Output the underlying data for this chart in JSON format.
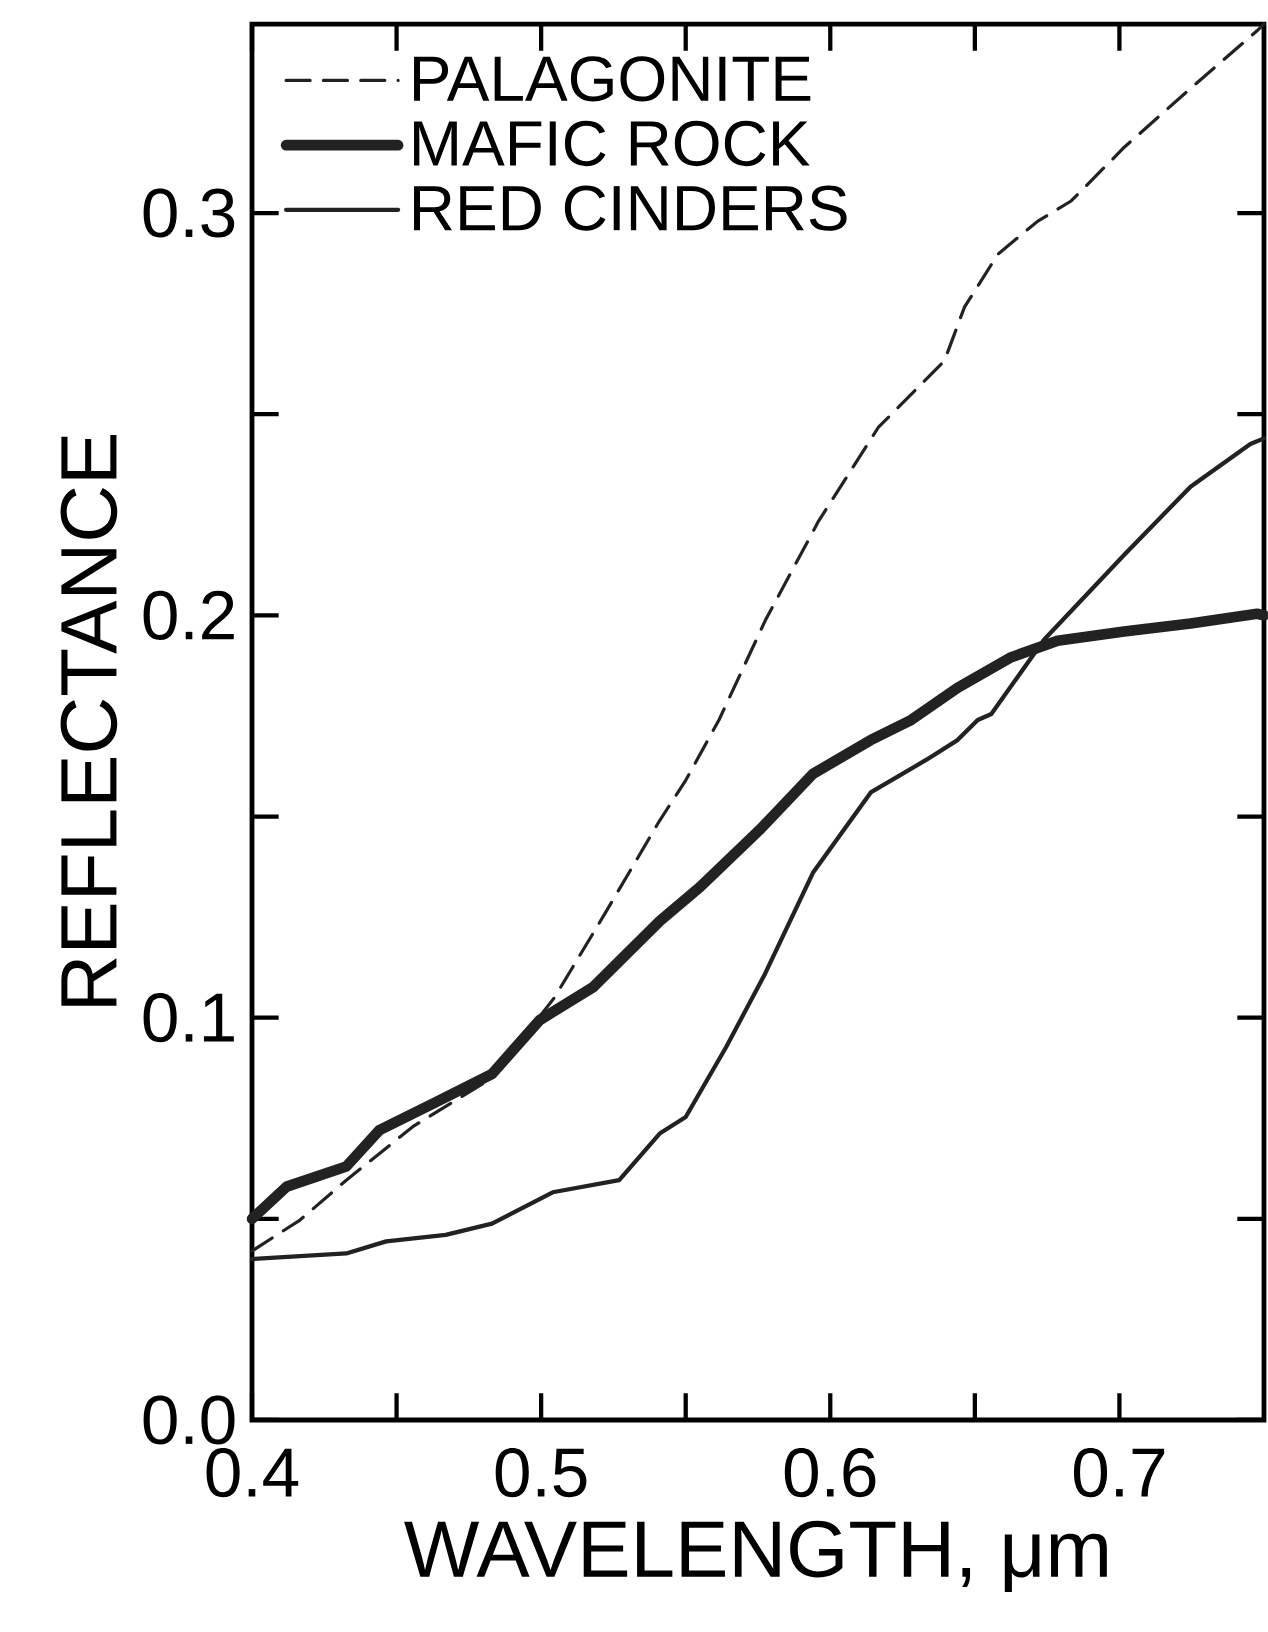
{
  "chart_data": {
    "type": "line",
    "xlabel": "WAVELENGTH, μm",
    "ylabel": "REFLECTANCE",
    "xlim": [
      0.4,
      0.75
    ],
    "ylim": [
      0,
      0.347
    ],
    "xticks": [
      0.4,
      {
        "value": 0.45,
        "label": null
      },
      0.5,
      {
        "value": 0.55,
        "label": null
      },
      0.6,
      {
        "value": 0.65,
        "label": null
      },
      0.7
    ],
    "yticks": [
      {
        "value": 0,
        "label": "0.0"
      },
      {
        "value": 0.05,
        "label": null
      },
      0.1,
      {
        "value": 0.15,
        "label": null
      },
      0.2,
      {
        "value": 0.25,
        "label": null
      },
      0.3
    ],
    "legend": "top left",
    "grid": false,
    "series": [
      {
        "name": "PALAGONITE",
        "color": "#222222",
        "line_style": "dashed",
        "x": [
          0.4,
          0.4166,
          0.4326,
          0.4556,
          0.483,
          0.5046,
          0.522,
          0.541,
          0.55,
          0.5615,
          0.5775,
          0.596,
          0.6166,
          0.6395,
          0.6464,
          0.658,
          0.6718,
          0.6833,
          0.7016,
          0.7246,
          0.7476,
          0.75
        ],
        "values": [
          0.042,
          0.0497,
          0.0596,
          0.0729,
          0.085,
          0.105,
          0.1258,
          0.149,
          0.159,
          0.174,
          0.1987,
          0.2235,
          0.2467,
          0.2633,
          0.2766,
          0.2898,
          0.298,
          0.303,
          0.3163,
          0.331,
          0.3453,
          0.347
        ]
      },
      {
        "name": "MAFIC ROCK",
        "color": "#222222",
        "line_style": "solid",
        "x": [
          0.4,
          0.412,
          0.4326,
          0.444,
          0.4625,
          0.483,
          0.4995,
          0.518,
          0.541,
          0.555,
          0.576,
          0.594,
          0.614,
          0.628,
          0.644,
          0.6626,
          0.6786,
          0.7016,
          0.7246,
          0.7476,
          0.75
        ],
        "values": [
          0.05,
          0.058,
          0.063,
          0.072,
          0.0786,
          0.086,
          0.0994,
          0.1076,
          0.124,
          0.1325,
          0.147,
          0.1606,
          0.169,
          0.174,
          0.182,
          0.1896,
          0.1937,
          0.196,
          0.198,
          0.2004,
          0.2
        ]
      },
      {
        "name": "RED CINDERS",
        "color": "#222222",
        "line_style": "solid",
        "x": [
          0.4,
          0.4326,
          0.4464,
          0.467,
          0.483,
          0.504,
          0.527,
          0.541,
          0.55,
          0.564,
          0.5775,
          0.594,
          0.614,
          0.633,
          0.644,
          0.651,
          0.6557,
          0.674,
          0.7016,
          0.7246,
          0.7453,
          0.75
        ],
        "values": [
          0.04,
          0.0414,
          0.0444,
          0.046,
          0.0488,
          0.0566,
          0.0596,
          0.0712,
          0.0753,
          0.0927,
          0.111,
          0.136,
          0.156,
          0.164,
          0.169,
          0.174,
          0.1755,
          0.194,
          0.215,
          0.232,
          0.2426,
          0.244
        ]
      }
    ]
  }
}
